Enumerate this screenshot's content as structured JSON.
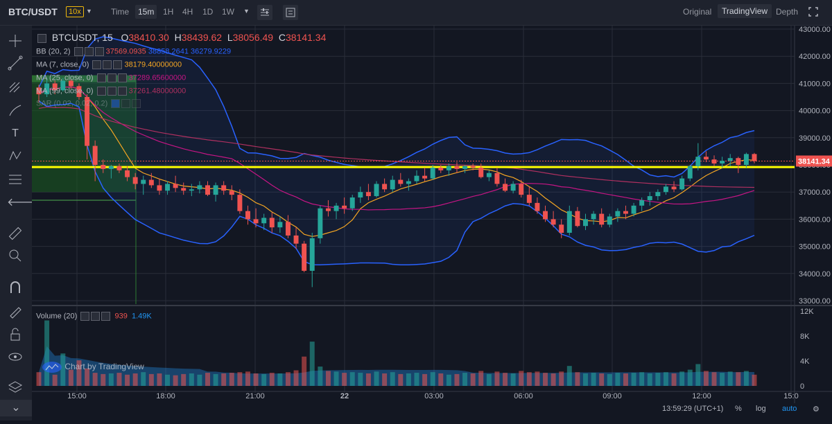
{
  "header": {
    "symbol": "BTC/USDT",
    "leverage": "10x",
    "timeframes": [
      {
        "label": "Time"
      },
      {
        "label": "15m",
        "active": true
      },
      {
        "label": "1H"
      },
      {
        "label": "4H"
      },
      {
        "label": "1D"
      },
      {
        "label": "1W"
      }
    ],
    "views": [
      {
        "label": "Original"
      },
      {
        "label": "TradingView",
        "active": true
      },
      {
        "label": "Depth"
      }
    ]
  },
  "legend": {
    "title": "BTCUSDT, 15",
    "o_label": "O",
    "o": "38410.30",
    "h_label": "H",
    "h": "38439.62",
    "l_label": "L",
    "l": "38056.49",
    "c_label": "C",
    "c": "38141.34",
    "bb": "BB (20, 2)",
    "bb_v1": "37569.0935",
    "bb_v2": "38858.2641",
    "bb_v3": "36279.9229",
    "ma7": "MA (7, close, 0)",
    "ma7_v": "38179.40000000",
    "ma25": "MA (25, close, 0)",
    "ma25_v": "37289.65600000",
    "ma99": "MA (99, close, 0)",
    "ma99_v": "37261.48000000",
    "sar": "SAR (0.02, 0.02, 0.2)"
  },
  "volume_legend": {
    "label": "Volume (20)",
    "v1": "939",
    "v2": "1.49K"
  },
  "watermark": "Chart by TradingView",
  "footer": {
    "time": "13:59:29 (UTC+1)",
    "pct": "%",
    "log": "log",
    "auto": "auto"
  },
  "colors": {
    "up": "#26a69a",
    "down": "#ef5350",
    "bb": "#2962ff",
    "ma7": "#f5a623",
    "ma25": "#c71585",
    "ma99": "#b03060",
    "hline": "#ffff00",
    "price": "#ef5350"
  },
  "chart_data": {
    "type": "candlestick",
    "price_axis": {
      "min": 33000,
      "max": 43000,
      "ticks": [
        "43000.00",
        "42000.00",
        "41000.00",
        "40000.00",
        "39000.00",
        "38000.00",
        "37000.00",
        "36000.00",
        "35000.00",
        "34000.00",
        "33000.00"
      ]
    },
    "volume_axis": {
      "ticks": [
        "12K",
        "8K",
        "4K",
        "0"
      ]
    },
    "time_ticks": [
      "15:00",
      "18:00",
      "21:00",
      "22",
      "03:00",
      "06:00",
      "09:00",
      "12:00",
      "15:0"
    ],
    "last_price": "38141.34",
    "horizontal_line": 37920,
    "candles": [
      [
        40850,
        40950,
        40300,
        40600
      ],
      [
        40600,
        41200,
        40500,
        41000
      ],
      [
        41000,
        41100,
        40600,
        40750
      ],
      [
        40750,
        41200,
        40700,
        41100
      ],
      [
        41100,
        41150,
        40800,
        40900
      ],
      [
        40900,
        41000,
        40400,
        40500
      ],
      [
        40500,
        40600,
        38200,
        38700
      ],
      [
        38700,
        38900,
        37400,
        38000
      ],
      [
        38000,
        38200,
        37700,
        37850
      ],
      [
        37850,
        38000,
        37500,
        37950
      ],
      [
        37950,
        38050,
        37700,
        37800
      ],
      [
        37800,
        37950,
        37400,
        37550
      ],
      [
        37550,
        37700,
        37100,
        37300
      ],
      [
        37300,
        37600,
        36900,
        37450
      ],
      [
        37450,
        37700,
        37150,
        37250
      ],
      [
        37250,
        37500,
        36900,
        37050
      ],
      [
        37050,
        37400,
        36900,
        37300
      ],
      [
        37300,
        37600,
        37000,
        37150
      ],
      [
        37150,
        37350,
        36900,
        37050
      ],
      [
        37050,
        37300,
        36850,
        37100
      ],
      [
        37100,
        37400,
        36950,
        37250
      ],
      [
        37250,
        37400,
        36850,
        36900
      ],
      [
        36900,
        37350,
        36650,
        37250
      ],
      [
        37250,
        37400,
        36900,
        37050
      ],
      [
        37050,
        37250,
        36700,
        36900
      ],
      [
        36900,
        37100,
        36200,
        36300
      ],
      [
        36300,
        36500,
        35800,
        36000
      ],
      [
        36000,
        36400,
        35700,
        35850
      ],
      [
        35850,
        36200,
        35600,
        36050
      ],
      [
        36050,
        36250,
        35500,
        35700
      ],
      [
        35700,
        36100,
        35500,
        35900
      ],
      [
        35900,
        36150,
        35300,
        35400
      ],
      [
        35400,
        35700,
        34900,
        35100
      ],
      [
        35100,
        35200,
        34050,
        34100
      ],
      [
        34100,
        35500,
        33500,
        35300
      ],
      [
        35300,
        36500,
        35100,
        36400
      ],
      [
        36400,
        36700,
        36100,
        36300
      ],
      [
        36300,
        36600,
        36000,
        36500
      ],
      [
        36500,
        36800,
        36200,
        36400
      ],
      [
        36400,
        36900,
        36300,
        36800
      ],
      [
        36800,
        37200,
        36600,
        37000
      ],
      [
        37000,
        37300,
        36700,
        36850
      ],
      [
        36850,
        37400,
        36800,
        37300
      ],
      [
        37300,
        37500,
        37000,
        37100
      ],
      [
        37100,
        37600,
        37000,
        37450
      ],
      [
        37450,
        37700,
        37200,
        37300
      ],
      [
        37300,
        37500,
        37050,
        37400
      ],
      [
        37400,
        37800,
        37300,
        37600
      ],
      [
        37600,
        37900,
        37400,
        37500
      ],
      [
        37500,
        38000,
        37450,
        37900
      ],
      [
        37900,
        38000,
        37700,
        37800
      ],
      [
        37800,
        38050,
        37600,
        37950
      ],
      [
        37950,
        38100,
        37700,
        37850
      ],
      [
        37850,
        38000,
        37700,
        37950
      ],
      [
        37950,
        38050,
        37800,
        37900
      ],
      [
        37900,
        38050,
        37500,
        37550
      ],
      [
        37550,
        37800,
        37400,
        37700
      ],
      [
        37700,
        37900,
        37200,
        37300
      ],
      [
        37300,
        37500,
        37000,
        37050
      ],
      [
        37050,
        37400,
        36950,
        37300
      ],
      [
        37300,
        37450,
        36800,
        36900
      ],
      [
        36900,
        37200,
        36500,
        36600
      ],
      [
        36600,
        36800,
        36200,
        36300
      ],
      [
        36300,
        36500,
        35900,
        36000
      ],
      [
        36000,
        36300,
        35700,
        35800
      ],
      [
        35800,
        36000,
        35300,
        35500
      ],
      [
        35500,
        36500,
        35400,
        36300
      ],
      [
        36300,
        36450,
        35700,
        35750
      ],
      [
        35750,
        36200,
        35600,
        36000
      ],
      [
        36000,
        36300,
        35800,
        36200
      ],
      [
        36200,
        36400,
        35700,
        35800
      ],
      [
        35800,
        36200,
        35700,
        36100
      ],
      [
        36100,
        36400,
        35900,
        36300
      ],
      [
        36300,
        36500,
        36000,
        36200
      ],
      [
        36200,
        36600,
        36100,
        36500
      ],
      [
        36500,
        36800,
        36300,
        36700
      ],
      [
        36700,
        37000,
        36500,
        36850
      ],
      [
        36850,
        37100,
        36700,
        37000
      ],
      [
        37000,
        37300,
        36900,
        37200
      ],
      [
        37200,
        37400,
        37000,
        37100
      ],
      [
        37100,
        37600,
        37050,
        37500
      ],
      [
        37500,
        38000,
        37400,
        37950
      ],
      [
        37950,
        38800,
        37800,
        38300
      ],
      [
        38300,
        38500,
        38100,
        38200
      ],
      [
        38200,
        38350,
        37950,
        38050
      ],
      [
        38050,
        38300,
        37900,
        38150
      ],
      [
        38150,
        38400,
        37950,
        38250
      ],
      [
        38250,
        38300,
        37700,
        38000
      ],
      [
        38000,
        38450,
        37900,
        38400
      ],
      [
        38400,
        38440,
        38056,
        38141
      ]
    ],
    "volumes": [
      2200,
      10500,
      1800,
      5200,
      2600,
      4100,
      2800,
      2100,
      1900,
      2000,
      2100,
      1800,
      2000,
      2200,
      1900,
      2000,
      1800,
      1700,
      1900,
      2000,
      1800,
      2100,
      1900,
      2000,
      2100,
      2200,
      2300,
      2000,
      1900,
      2100,
      2000,
      2200,
      2500,
      4700,
      7100,
      3100,
      2400,
      2300,
      2100,
      2200,
      2100,
      2000,
      2300,
      2000,
      2200,
      1900,
      2000,
      2100,
      1900,
      2200,
      2000,
      1800,
      1900,
      2100,
      2000,
      2400,
      1900,
      2300,
      2100,
      2000,
      2400,
      2200,
      2300,
      2100,
      2000,
      2300,
      3200,
      2200,
      2000,
      2100,
      2000,
      1900,
      2100,
      2000,
      2100,
      2200,
      2000,
      2100,
      2200,
      2000,
      2300,
      2600,
      3500,
      2400,
      2200,
      2100,
      2300,
      2200,
      2400,
      1800
    ]
  }
}
